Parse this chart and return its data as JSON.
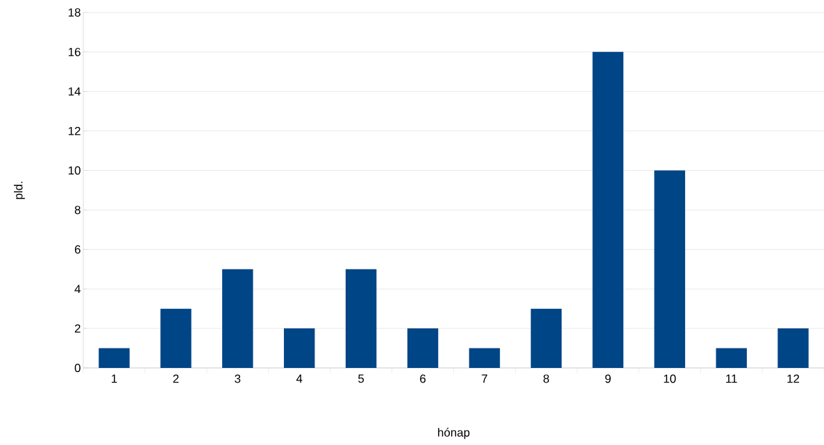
{
  "chart_data": {
    "type": "bar",
    "xlabel": "hónap",
    "ylabel": "pld.",
    "categories": [
      "1",
      "2",
      "3",
      "4",
      "5",
      "6",
      "7",
      "8",
      "9",
      "10",
      "11",
      "12"
    ],
    "values": [
      1,
      3,
      5,
      2,
      5,
      2,
      1,
      3,
      16,
      10,
      1,
      2
    ],
    "color": "#004586",
    "ylim": [
      0,
      18
    ],
    "yticks": [
      0,
      2,
      4,
      6,
      8,
      10,
      12,
      14,
      16,
      18
    ],
    "grid": "y"
  }
}
